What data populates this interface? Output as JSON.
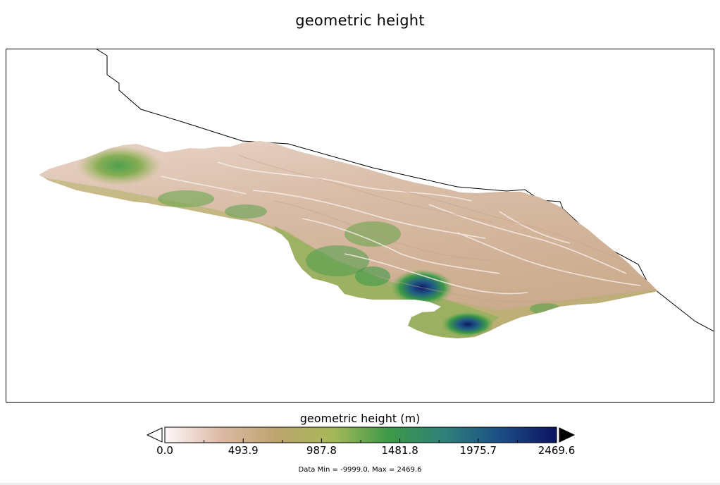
{
  "title": "geometric height",
  "colorbar": {
    "title": "geometric height (m)",
    "ticks": [
      "0.0",
      "493.9",
      "987.8",
      "1481.8",
      "1975.7",
      "2469.6"
    ],
    "tick_values": [
      0.0,
      493.9,
      987.8,
      1481.8,
      1975.7,
      2469.6
    ],
    "min": 0.0,
    "max": 2469.6,
    "colors": [
      "#fdf7f8",
      "#dcb9a4",
      "#bda46e",
      "#a6b957",
      "#3c9a47",
      "#2f807a",
      "#1b4e86",
      "#0c1361"
    ],
    "extend": "both"
  },
  "data_range_text": "Data Min = -9999.0, Max = 2469.6",
  "map": {
    "colors": {
      "boundary": "#000000",
      "lowland": "#e8cfc4",
      "mid": "#c6a987",
      "upland": "#a8b45e",
      "high": "#3f9a4a",
      "peak": "#1f5a85",
      "summit": "#0d1a66"
    }
  }
}
